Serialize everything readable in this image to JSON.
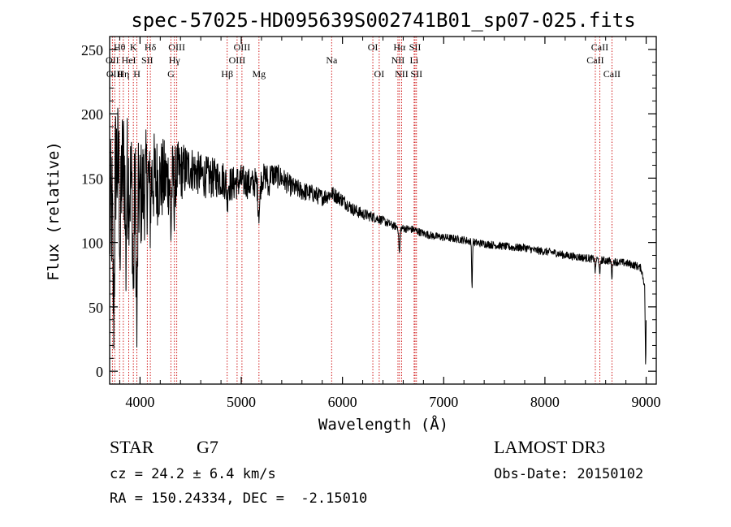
{
  "chart_data": {
    "type": "line",
    "title": "spec-57025-HD095639S002741B01_sp07-025.fits",
    "xlabel": "Wavelength (Å)",
    "ylabel": "Flux (relative)",
    "xlim": [
      3700,
      9100
    ],
    "ylim": [
      -10,
      260
    ],
    "x_ticks": [
      4000,
      5000,
      6000,
      7000,
      8000,
      9000
    ],
    "y_ticks": [
      0,
      50,
      100,
      150,
      200,
      250
    ],
    "grid": false,
    "series": [
      {
        "name": "flux",
        "anchors_x": [
          3700,
          3760,
          3800,
          3850,
          3900,
          3950,
          4000,
          4050,
          4100,
          4200,
          4300,
          4400,
          4500,
          4600,
          4700,
          4800,
          4900,
          5000,
          5100,
          5200,
          5300,
          5400,
          5500,
          5600,
          5700,
          5800,
          5900,
          6000,
          6100,
          6200,
          6300,
          6400,
          6500,
          6600,
          6700,
          6800,
          6900,
          7000,
          7100,
          7200,
          7300,
          7400,
          7500,
          7600,
          7700,
          7800,
          7900,
          8000,
          8100,
          8200,
          8300,
          8400,
          8500,
          8600,
          8700,
          8800,
          8900,
          8950,
          8990
        ],
        "anchors_y": [
          110,
          165,
          150,
          160,
          145,
          140,
          135,
          145,
          150,
          148,
          150,
          155,
          158,
          152,
          150,
          150,
          145,
          148,
          145,
          150,
          153,
          150,
          143,
          140,
          138,
          135,
          138,
          133,
          126,
          122,
          120,
          117,
          113,
          111,
          110,
          107,
          105,
          104,
          103,
          102,
          100,
          99,
          98,
          97,
          96,
          96,
          94,
          93,
          92,
          90,
          89,
          88,
          87,
          86,
          85,
          84,
          82,
          80,
          65
        ],
        "noise_breaks_x": [
          3700,
          4000,
          4500,
          5500,
          6500,
          9000
        ],
        "noise_breaks_amp": [
          60,
          45,
          18,
          8,
          3,
          3
        ],
        "dips": [
          {
            "x": 3934,
            "depth": 80,
            "width": 6
          },
          {
            "x": 3969,
            "depth": 110,
            "width": 6
          },
          {
            "x": 3860,
            "depth": 70,
            "width": 5
          },
          {
            "x": 3805,
            "depth": 60,
            "width": 5
          },
          {
            "x": 3740,
            "depth": 95,
            "width": 8
          },
          {
            "x": 4101,
            "depth": 25,
            "width": 5
          },
          {
            "x": 4305,
            "depth": 40,
            "width": 6
          },
          {
            "x": 4340,
            "depth": 20,
            "width": 5
          },
          {
            "x": 4861,
            "depth": 15,
            "width": 5
          },
          {
            "x": 5175,
            "depth": 25,
            "width": 10
          },
          {
            "x": 5270,
            "depth": 12,
            "width": 6
          },
          {
            "x": 6563,
            "depth": 20,
            "width": 6
          },
          {
            "x": 7280,
            "depth": 35,
            "width": 4
          },
          {
            "x": 8498,
            "depth": 10,
            "width": 4
          },
          {
            "x": 8542,
            "depth": 14,
            "width": 4
          },
          {
            "x": 8662,
            "depth": 12,
            "width": 4
          },
          {
            "x": 8995,
            "depth": 60,
            "width": 4
          }
        ]
      }
    ],
    "line_markers": [
      {
        "label": "OII",
        "x": 3727,
        "row": 1
      },
      {
        "label": "Hθ",
        "x": 3798,
        "row": 0
      },
      {
        "label": "OIII",
        "x": 3750,
        "row": 2
      },
      {
        "label": "K",
        "x": 3934,
        "row": 0
      },
      {
        "label": "HeI",
        "x": 3889,
        "row": 1
      },
      {
        "label": "Hη",
        "x": 3835,
        "row": 2
      },
      {
        "label": "SII",
        "x": 4072,
        "row": 1
      },
      {
        "label": "H",
        "x": 3969,
        "row": 2
      },
      {
        "label": "Hδ",
        "x": 4102,
        "row": 0
      },
      {
        "label": "OIII",
        "x": 4363,
        "row": 0
      },
      {
        "label": "Hγ",
        "x": 4340,
        "row": 1
      },
      {
        "label": "G",
        "x": 4305,
        "row": 2
      },
      {
        "label": "Hβ",
        "x": 4861,
        "row": 2
      },
      {
        "label": "OIII",
        "x": 5007,
        "row": 0
      },
      {
        "label": "OIII",
        "x": 4959,
        "row": 1
      },
      {
        "label": "Mg",
        "x": 5175,
        "row": 2
      },
      {
        "label": "Na",
        "x": 5893,
        "row": 1
      },
      {
        "label": "OI",
        "x": 6300,
        "row": 0
      },
      {
        "label": "OI",
        "x": 6363,
        "row": 2
      },
      {
        "label": "Hα",
        "x": 6563,
        "row": 0
      },
      {
        "label": "NII",
        "x": 6548,
        "row": 1
      },
      {
        "label": "NII",
        "x": 6584,
        "row": 2
      },
      {
        "label": "SII",
        "x": 6717,
        "row": 0
      },
      {
        "label": "Li",
        "x": 6708,
        "row": 1
      },
      {
        "label": "SII",
        "x": 6731,
        "row": 2
      },
      {
        "label": "CaII",
        "x": 8542,
        "row": 0
      },
      {
        "label": "CaII",
        "x": 8498,
        "row": 1
      },
      {
        "label": "CaII",
        "x": 8662,
        "row": 2
      }
    ]
  },
  "info": {
    "object_class": "STAR",
    "subclass": "G7",
    "survey": "LAMOST DR3",
    "cz_text": "cz = 24.2 ± 6.4 km/s",
    "obs_date_text": "Obs-Date: 20150102",
    "radec_text": "RA = 150.24334, DEC =  -2.15010"
  },
  "colors": {
    "spectrum": "#000000",
    "marker_line": "#cc0000",
    "axis": "#000000"
  }
}
